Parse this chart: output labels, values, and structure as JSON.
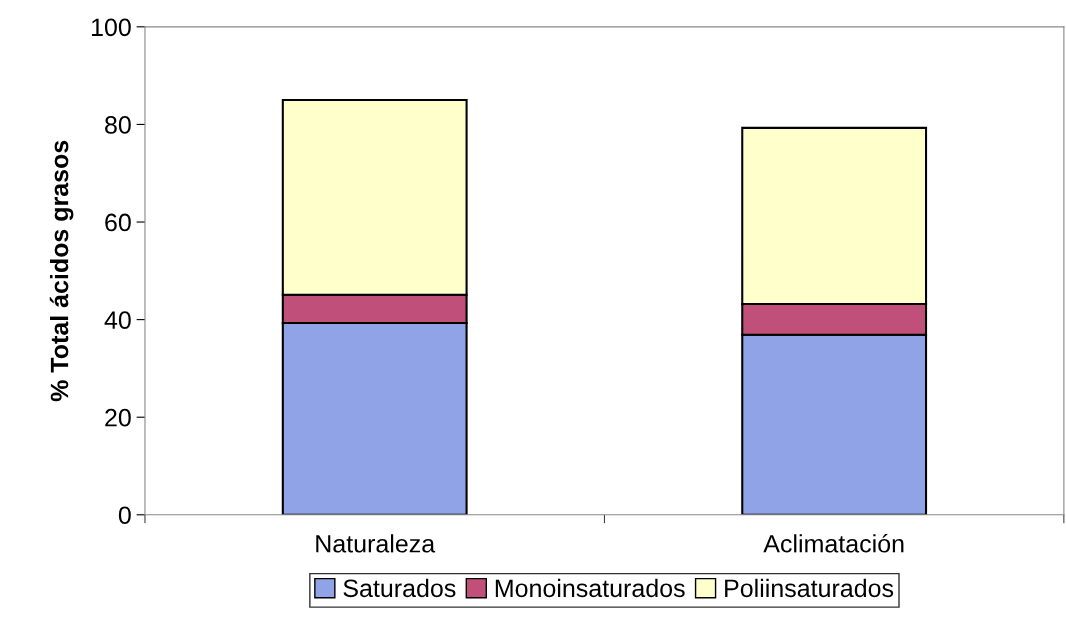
{
  "chart_data": {
    "type": "bar",
    "stacked": true,
    "ylabel": "% Total ácidos grasos",
    "categories": [
      "Naturaleza",
      "Aclimatación"
    ],
    "series": [
      {
        "name": "Saturados",
        "color": "#8fa3e6",
        "values": [
          39.3,
          36.9
        ]
      },
      {
        "name": "Monoinsaturados",
        "color": "#c0507a",
        "values": [
          5.8,
          6.3
        ]
      },
      {
        "name": "Poliinsaturados",
        "color": "#ffffcc",
        "values": [
          39.9,
          36.1
        ]
      }
    ],
    "ylim": [
      0,
      100
    ],
    "yticks": [
      0,
      20,
      40,
      60,
      80,
      100
    ],
    "grid": false,
    "legend": "bottom"
  }
}
